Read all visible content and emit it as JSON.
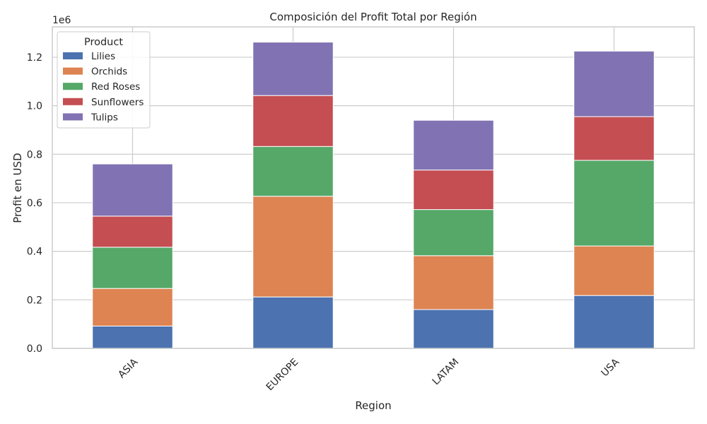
{
  "chart_data": {
    "type": "bar",
    "stacked": true,
    "title": "Composición del Profit Total por Región",
    "xlabel": "Region",
    "ylabel": "Profit en USD",
    "y_multiplier_label": "1e6",
    "ylim": [
      0,
      1.325
    ],
    "yticks": [
      "0.0",
      "0.2",
      "0.4",
      "0.6",
      "0.8",
      "1.0",
      "1.2"
    ],
    "categories": [
      "ASIA",
      "EUROPE",
      "LATAM",
      "USA"
    ],
    "grid": true,
    "legend": {
      "title": "Product",
      "placement": "top-left"
    },
    "series": [
      {
        "name": "Lilies",
        "color": "#4c72b0",
        "values": [
          0.092,
          0.212,
          0.16,
          0.218
        ]
      },
      {
        "name": "Orchids",
        "color": "#dd8452",
        "values": [
          0.155,
          0.415,
          0.222,
          0.204
        ]
      },
      {
        "name": "Red Roses",
        "color": "#55a868",
        "values": [
          0.17,
          0.205,
          0.19,
          0.353
        ]
      },
      {
        "name": "Sunflowers",
        "color": "#c44e52",
        "values": [
          0.128,
          0.21,
          0.163,
          0.18
        ]
      },
      {
        "name": "Tulips",
        "color": "#8172b3",
        "values": [
          0.215,
          0.22,
          0.205,
          0.27
        ]
      }
    ]
  }
}
